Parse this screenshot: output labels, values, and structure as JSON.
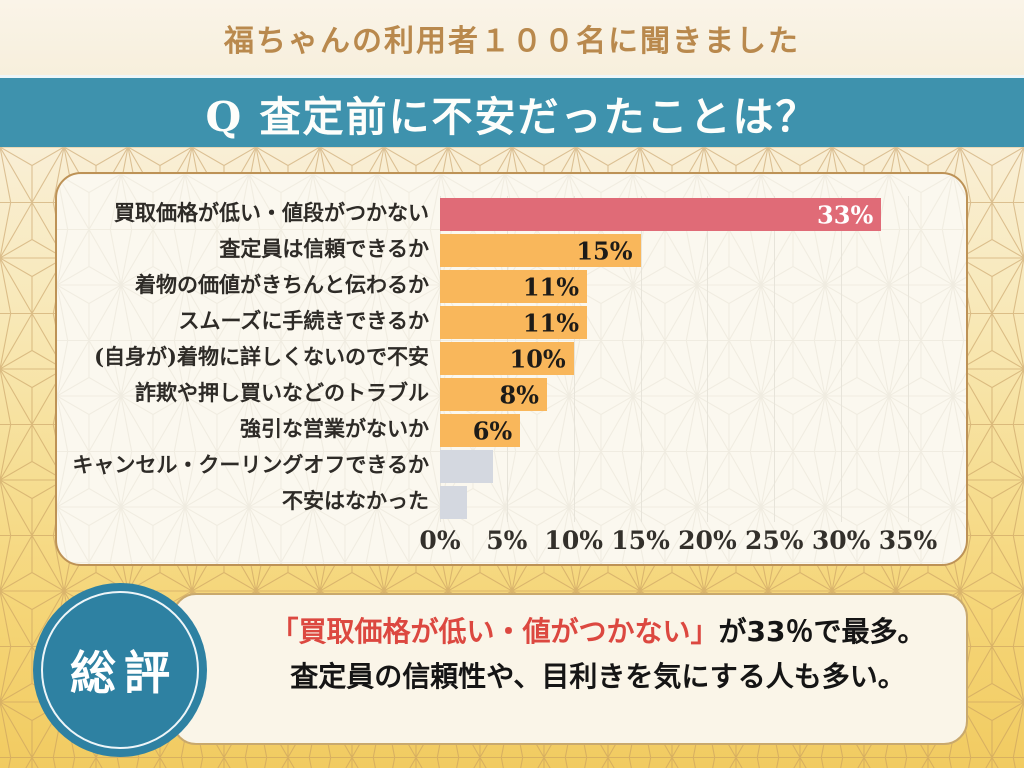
{
  "header": {
    "subtitle": "福ちゃんの利用者１００名に聞きました",
    "question": "Q 査定前に不安だったことは？"
  },
  "chart_data": {
    "type": "bar",
    "orientation": "horizontal",
    "title": "査定前に不安だったこと（利用者100名アンケート）",
    "unit": "%",
    "categories": [
      "買取価格が低い・値段がつかない",
      "査定員は信頼できるか",
      "着物の価値がきちんと伝わるか",
      "スムーズに手続きできるか",
      "(自身が)着物に詳しくないので不安",
      "詐欺や押し買いなどのトラブル",
      "強引な営業がないか",
      "キャンセル・クーリングオフできるか",
      "不安はなかった"
    ],
    "values": [
      33,
      15,
      11,
      11,
      10,
      8,
      6,
      4,
      2
    ],
    "value_labels": [
      "33%",
      "15%",
      "11%",
      "11%",
      "10%",
      "8%",
      "6%",
      "",
      ""
    ],
    "bar_colors": [
      "#e06b77",
      "#f9b75b",
      "#f9b75b",
      "#f9b75b",
      "#f9b75b",
      "#f9b75b",
      "#f9b75b",
      "#d4d8e0",
      "#d4d8e0"
    ],
    "value_label_colors": [
      "#ffffff",
      "#1d1b18",
      "#1d1b18",
      "#1d1b18",
      "#1d1b18",
      "#1d1b18",
      "#1d1b18",
      "#1d1b18",
      "#1d1b18"
    ],
    "xlim": [
      0,
      35
    ],
    "x_ticks": [
      "0%",
      "5%",
      "10%",
      "15%",
      "20%",
      "25%",
      "30%",
      "35%"
    ],
    "grid": true,
    "legend": false
  },
  "summary": {
    "badge": "総評",
    "line1_highlight": "「買取価格が低い・値がつかない」",
    "line1_rest": "が33％で最多。",
    "line2": "査定員の信頼性や、目利きを気にする人も多い。"
  },
  "colors": {
    "banner_teal": "#3e92ad",
    "badge_teal": "#2e81a2",
    "title_tan": "#b9894d",
    "highlight_red": "#dc4840",
    "bar_red": "#e06b77",
    "bar_orange": "#f9b75b",
    "bar_gray": "#d4d8e0",
    "card_border": "#bd9256",
    "background_gold": "#f5d577"
  }
}
